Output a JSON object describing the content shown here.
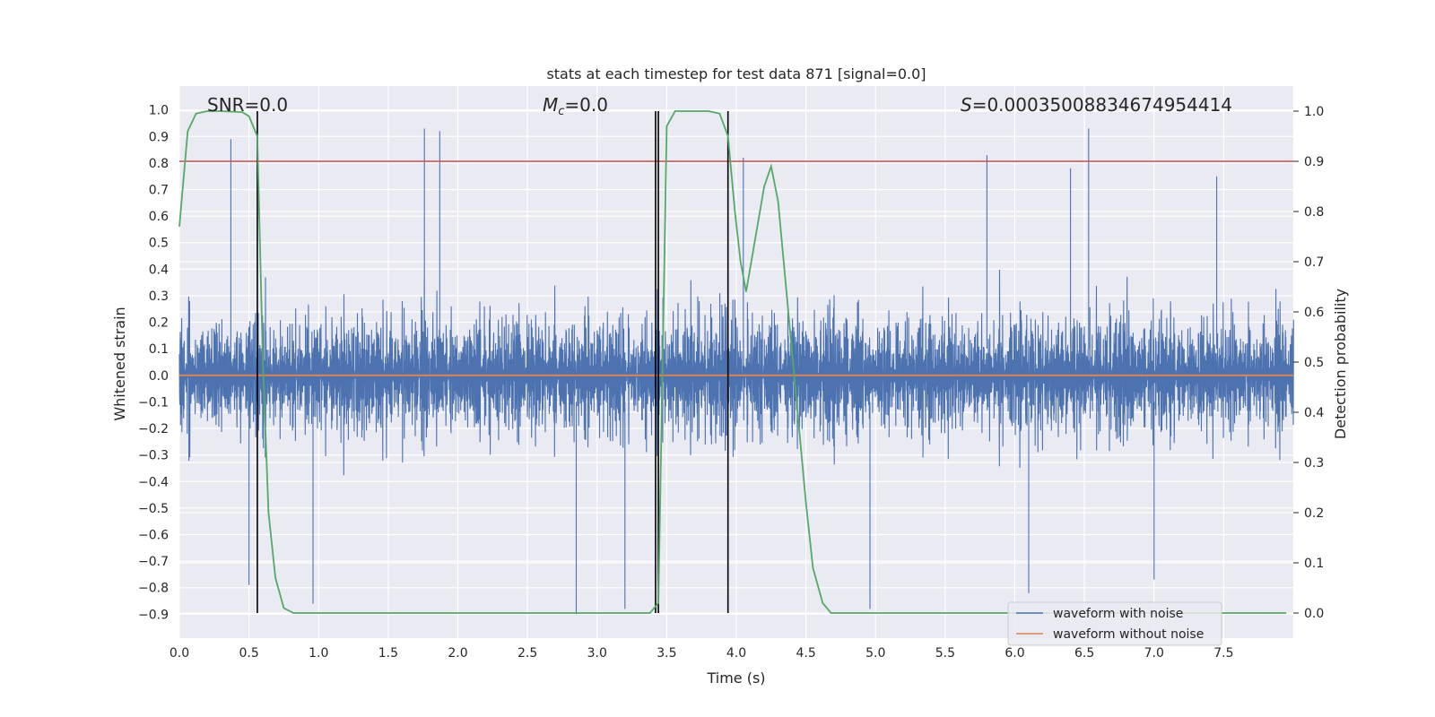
{
  "chart_data": {
    "type": "line",
    "title": "stats at each timestep for test data 871 [signal=0.0]",
    "xlabel": "Time (s)",
    "ylabel": "Whitened strain",
    "y2label": "Detection probability",
    "xlim": [
      0.0,
      8.0
    ],
    "ylim": [
      -0.99,
      1.09
    ],
    "y2lim": [
      -0.05,
      1.05
    ],
    "x_ticks": [
      0.0,
      0.5,
      1.0,
      1.5,
      2.0,
      2.5,
      3.0,
      3.5,
      4.0,
      4.5,
      5.0,
      5.5,
      6.0,
      6.5,
      7.0,
      7.5
    ],
    "x_tick_labels": [
      "0.0",
      "0.5",
      "1.0",
      "1.5",
      "2.0",
      "2.5",
      "3.0",
      "3.5",
      "4.0",
      "4.5",
      "5.0",
      "5.5",
      "6.0",
      "6.5",
      "7.0",
      "7.5"
    ],
    "y_ticks": [
      1.0,
      0.9,
      0.8,
      0.7,
      0.6,
      0.5,
      0.4,
      0.3,
      0.2,
      0.1,
      0.0,
      -0.1,
      -0.2,
      -0.3,
      -0.4,
      -0.5,
      -0.6,
      -0.7,
      -0.8,
      -0.9
    ],
    "y_tick_labels": [
      "1.0",
      "0.9",
      "0.8",
      "0.7",
      "0.6",
      "0.5",
      "0.4",
      "0.3",
      "0.2",
      "0.1",
      "0.0",
      "−0.1",
      "−0.2",
      "−0.3",
      "−0.4",
      "−0.5",
      "−0.6",
      "−0.7",
      "−0.8",
      "−0.9"
    ],
    "y2_ticks": [
      1.0,
      0.9,
      0.8,
      0.7,
      0.6,
      0.5,
      0.4,
      0.3,
      0.2,
      0.1,
      0.0
    ],
    "y2_tick_labels": [
      "1.0",
      "0.9",
      "0.8",
      "0.7",
      "0.6",
      "0.5",
      "0.4",
      "0.3",
      "0.2",
      "0.1",
      "0.0"
    ],
    "grid": true,
    "legend_position": "bottom-right",
    "annotations": {
      "snr": "SNR=0.0",
      "mc_symbol": "M",
      "mc_sub": "c",
      "mc_value": "=0.0",
      "s_symbol": "S",
      "s_value": "=0.00035008834674954414"
    },
    "series": [
      {
        "name": "waveform with noise",
        "color": "#4c72b0",
        "description_values": "dense noise, mostly within [-0.5, 0.55], peaks near 0.93 and troughs near -0.9",
        "peaks": [
          [
            0.37,
            0.89
          ],
          [
            1.76,
            0.93
          ],
          [
            1.87,
            0.92
          ],
          [
            4.05,
            0.82
          ],
          [
            5.8,
            0.83
          ],
          [
            6.53,
            0.93
          ],
          [
            6.4,
            0.78
          ],
          [
            7.45,
            0.75
          ]
        ],
        "troughs": [
          [
            0.5,
            -0.79
          ],
          [
            0.96,
            -0.86
          ],
          [
            2.85,
            -0.9
          ],
          [
            3.2,
            -0.88
          ],
          [
            4.96,
            -0.88
          ],
          [
            6.1,
            -0.82
          ],
          [
            7.0,
            -0.77
          ]
        ]
      },
      {
        "name": "waveform without noise",
        "color": "#dd8452",
        "x": [
          0.0,
          8.0
        ],
        "y": [
          0.0,
          0.0
        ]
      },
      {
        "name": "detection probability",
        "color": "#55a868",
        "axis": "y2",
        "x": [
          0.0,
          0.06,
          0.12,
          0.2,
          0.3,
          0.45,
          0.5,
          0.56,
          0.6,
          0.64,
          0.69,
          0.75,
          0.82,
          1.0,
          2.0,
          3.0,
          3.38,
          3.44,
          3.5,
          3.56,
          3.65,
          3.8,
          3.88,
          3.94,
          3.99,
          4.03,
          4.07,
          4.12,
          4.2,
          4.25,
          4.3,
          4.4,
          4.5,
          4.55,
          4.62,
          4.68,
          4.75,
          5.0,
          6.0,
          7.0,
          7.95
        ],
        "y": [
          0.77,
          0.96,
          0.995,
          1.0,
          1.0,
          0.998,
          0.99,
          0.95,
          0.5,
          0.2,
          0.07,
          0.01,
          0.0,
          0.0,
          0.0,
          0.0,
          0.0,
          0.02,
          0.97,
          1.0,
          1.0,
          1.0,
          0.995,
          0.95,
          0.8,
          0.7,
          0.64,
          0.72,
          0.85,
          0.89,
          0.82,
          0.52,
          0.22,
          0.09,
          0.02,
          0.0,
          0.0,
          0.0,
          0.0,
          0.0,
          0.0
        ]
      }
    ],
    "hlines": [
      {
        "axis": "y2",
        "y": 0.9,
        "color": "#c44e52"
      }
    ],
    "vlines": [
      0.56,
      3.42,
      3.44,
      3.94
    ],
    "vline_color": "#000000"
  }
}
